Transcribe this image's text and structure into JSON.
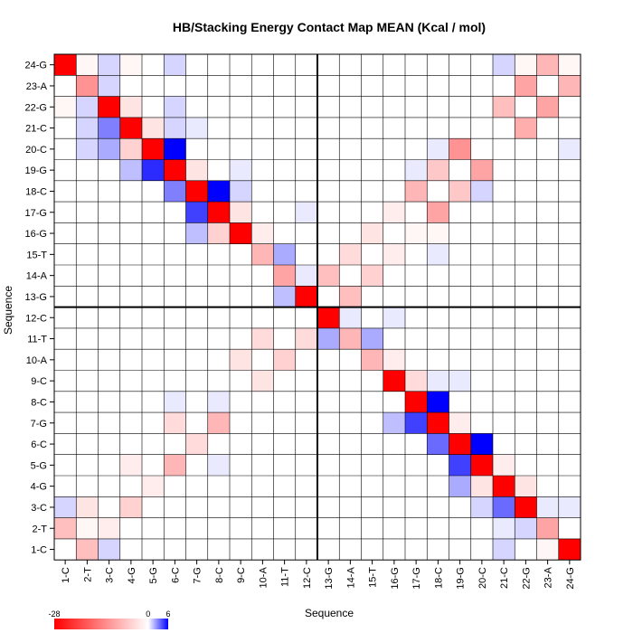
{
  "chart_data": {
    "type": "heatmap",
    "title": "HB/Stacking Energy Contact Map MEAN (Kcal / mol)",
    "xlabel": "Sequence",
    "ylabel": "Sequence",
    "x_categories": [
      "1-C",
      "2-T",
      "3-C",
      "4-G",
      "5-G",
      "6-C",
      "7-G",
      "8-C",
      "9-C",
      "10-A",
      "11-T",
      "12-C",
      "13-G",
      "14-A",
      "15-T",
      "16-G",
      "17-G",
      "18-C",
      "19-G",
      "20-C",
      "21-C",
      "22-G",
      "23-A",
      "24-G"
    ],
    "y_categories_top_to_bottom": [
      "24-G",
      "23-A",
      "22-G",
      "21-C",
      "20-C",
      "19-G",
      "18-C",
      "17-G",
      "16-G",
      "15-T",
      "14-A",
      "13-G",
      "12-C",
      "11-T",
      "10-A",
      "9-C",
      "8-C",
      "7-G",
      "6-C",
      "5-G",
      "4-G",
      "3-C",
      "2-T",
      "1-C"
    ],
    "color_scale": {
      "min": -28,
      "mid": 0,
      "max": 6,
      "min_color": "#ff0000",
      "mid_color": "#ffffff",
      "max_color": "#0000ff"
    },
    "colorbar_labels": [
      "-28",
      "0",
      "6"
    ],
    "strand_divider_after_index": 12,
    "matrix_top_to_bottom": [
      [
        -28,
        -1,
        1,
        -1,
        0,
        1,
        0,
        0,
        0,
        0,
        0,
        0,
        0,
        0,
        0,
        0,
        0,
        0,
        0,
        0,
        1,
        -1,
        -8,
        -1
      ],
      [
        0,
        -12,
        1,
        0,
        0,
        0,
        0,
        0,
        0,
        0,
        0,
        0,
        0,
        0,
        0,
        0,
        0,
        0,
        0,
        0,
        0,
        -10,
        0,
        -8
      ],
      [
        -1,
        1,
        -28,
        -3,
        0,
        1,
        0,
        0,
        0,
        0,
        0,
        0,
        0,
        0,
        0,
        0,
        0,
        0,
        0,
        0,
        -7,
        0,
        -10,
        0
      ],
      [
        0,
        1,
        3,
        -28,
        -3,
        1,
        0.5,
        0,
        0,
        0,
        0,
        0,
        0,
        0,
        0,
        0,
        0,
        0,
        0,
        0,
        0,
        -9,
        0,
        0
      ],
      [
        0,
        1,
        2,
        -5,
        -28,
        6,
        0,
        0,
        0,
        0,
        0,
        0,
        0,
        0,
        0,
        0,
        0,
        0.5,
        -12,
        0,
        0,
        0,
        0,
        0.5
      ],
      [
        0,
        0,
        0,
        1.5,
        5,
        -28,
        -3,
        0,
        0.5,
        0,
        0,
        0,
        0,
        0,
        0,
        0,
        0.5,
        -6,
        0,
        -10,
        0,
        0,
        0,
        0
      ],
      [
        0,
        0,
        0,
        0,
        0,
        3,
        -28,
        6,
        1,
        0,
        0,
        0,
        0,
        0,
        0,
        0,
        -8,
        0,
        -6,
        1,
        0,
        0,
        0,
        0
      ],
      [
        0,
        0,
        0,
        0,
        0,
        0,
        4.5,
        -28,
        -3,
        0,
        0,
        0.5,
        0,
        0,
        0,
        -2,
        0,
        -10,
        0,
        0,
        0,
        0,
        0,
        0
      ],
      [
        0,
        0,
        0,
        0,
        0,
        0,
        1.5,
        -5,
        -28,
        -2,
        0,
        0,
        0,
        0,
        -3,
        0,
        -1,
        -1,
        0,
        0,
        0,
        0,
        0,
        0
      ],
      [
        0,
        0,
        0,
        0,
        0,
        0,
        0,
        0,
        0,
        -8,
        2,
        0,
        0,
        -4,
        0,
        -2,
        0,
        0.5,
        0,
        0,
        0,
        0,
        0,
        0
      ],
      [
        0,
        0,
        0,
        0,
        0,
        0,
        0,
        0,
        0,
        0,
        -10,
        0.5,
        -7,
        0,
        -5,
        0,
        0,
        0,
        0,
        0,
        0,
        0,
        0,
        0
      ],
      [
        0,
        0,
        0,
        0,
        0,
        0,
        0,
        0,
        0,
        0,
        1.5,
        -28,
        0,
        -7,
        0,
        0,
        0,
        0,
        0,
        0,
        0,
        0,
        0,
        0
      ],
      [
        0,
        0,
        0,
        0,
        0,
        0,
        0,
        0,
        0,
        0,
        0,
        0,
        -28,
        0.5,
        0,
        0.5,
        0,
        0,
        0,
        0,
        0,
        0,
        0,
        0
      ],
      [
        0,
        0,
        0,
        0,
        0,
        0,
        0,
        0,
        0,
        -4,
        0,
        -4,
        2,
        -8,
        2,
        0,
        0,
        0,
        0,
        0,
        0,
        0,
        0,
        0
      ],
      [
        0,
        0,
        0,
        0,
        0,
        0,
        0,
        0,
        -3,
        0,
        -5,
        0,
        0,
        0,
        -8,
        -2,
        0,
        0,
        0,
        0,
        0,
        0,
        0,
        0
      ],
      [
        0,
        0,
        0,
        0,
        0,
        0,
        0,
        0,
        0,
        -3,
        0,
        0,
        0,
        0,
        0,
        -28,
        -4,
        0.5,
        0.5,
        0,
        0,
        0,
        0,
        0
      ],
      [
        0,
        0,
        0,
        0,
        0,
        0.5,
        0,
        0.5,
        0,
        0,
        0,
        0,
        0,
        0,
        0,
        0,
        -28,
        6,
        0,
        0,
        0,
        0,
        0,
        0
      ],
      [
        0,
        0,
        0,
        0,
        0,
        -4,
        0,
        -8,
        0,
        0,
        0,
        0,
        0,
        0,
        0,
        1.5,
        4.5,
        -28,
        -2,
        0,
        0,
        0,
        0,
        0
      ],
      [
        0,
        0,
        0,
        0,
        0,
        0,
        -4,
        0,
        0,
        0,
        0,
        0,
        0,
        0,
        0,
        0,
        0,
        3.5,
        -28,
        6,
        0,
        0,
        0,
        0
      ],
      [
        0,
        0,
        0,
        -2,
        0,
        -8,
        0,
        0.5,
        0,
        0,
        0,
        0,
        0,
        0,
        0,
        0,
        0,
        0,
        4.5,
        -28,
        -2,
        0,
        0,
        0
      ],
      [
        0,
        0,
        0,
        0,
        -2,
        0,
        0,
        0,
        0,
        0,
        0,
        0,
        0,
        0,
        0,
        0,
        0,
        0,
        2,
        -3,
        -28,
        -3,
        0,
        0
      ],
      [
        1,
        -3,
        0,
        -5,
        0,
        0,
        0,
        0,
        0,
        0,
        0,
        0,
        0,
        0,
        0,
        0,
        0,
        0,
        0,
        1,
        3.5,
        -28,
        0.5,
        0.5
      ],
      [
        -7,
        -1,
        -2,
        0,
        0,
        0,
        0,
        0,
        0,
        0,
        0,
        0,
        0,
        0,
        0,
        0,
        0,
        0,
        0,
        0,
        0.5,
        1,
        -10,
        0
      ],
      [
        0,
        -7,
        1,
        0,
        0,
        0,
        0,
        0,
        0,
        0,
        0,
        0,
        0,
        0,
        0,
        0,
        0,
        0,
        0,
        0,
        1,
        0,
        -1,
        -28
      ]
    ]
  }
}
